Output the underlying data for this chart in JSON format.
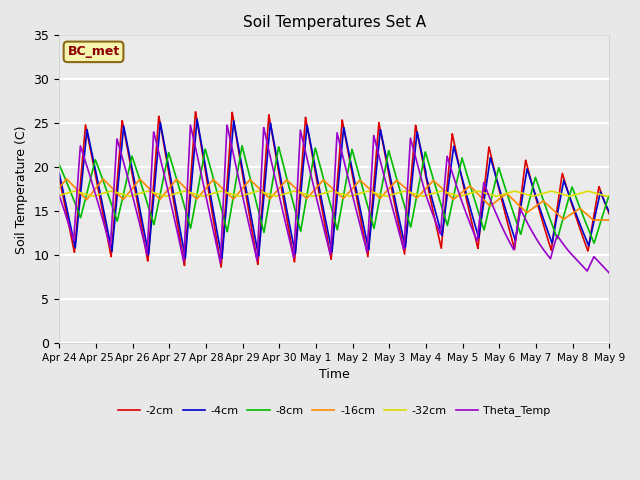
{
  "title": "Soil Temperatures Set A",
  "xlabel": "Time",
  "ylabel": "Soil Temperature (C)",
  "ylim": [
    0,
    35
  ],
  "yticks": [
    0,
    5,
    10,
    15,
    20,
    25,
    30,
    35
  ],
  "annotation_text": "BC_met",
  "legend_labels": [
    "-2cm",
    "-4cm",
    "-8cm",
    "-16cm",
    "-32cm",
    "Theta_Temp"
  ],
  "line_colors": [
    "#dd0000",
    "#0000cc",
    "#00bb00",
    "#ff8800",
    "#dddd00",
    "#9900cc"
  ],
  "bg_color": "#e8e8e8",
  "plot_bg_color": "#ebebeb",
  "grid_color": "#ffffff",
  "tick_label_dates": [
    "Apr 24",
    "Apr 25",
    "Apr 26",
    "Apr 27",
    "Apr 28",
    "Apr 29",
    "Apr 30",
    "May 1",
    "May 2",
    "May 3",
    "May 4",
    "May 5",
    "May 6",
    "May 7",
    "May 8",
    "May 9"
  ]
}
